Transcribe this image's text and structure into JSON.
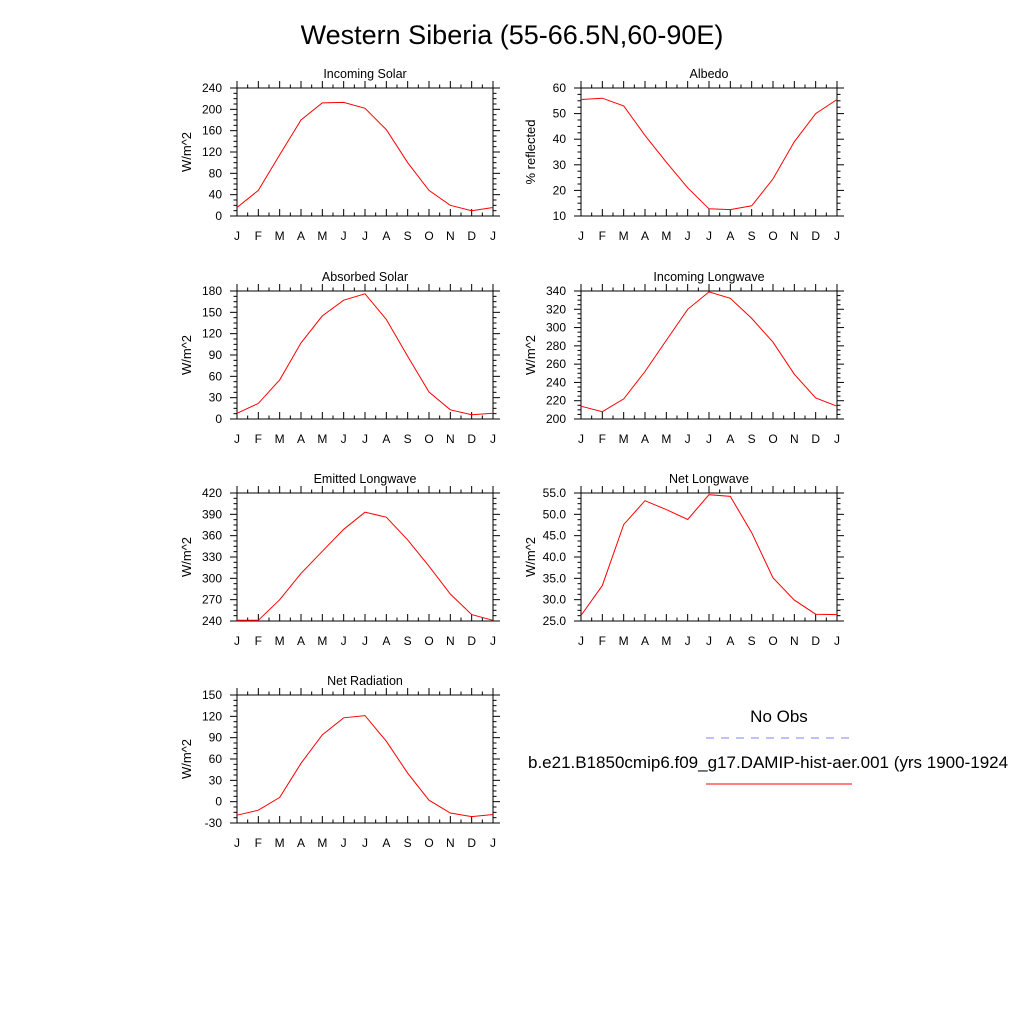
{
  "title": "Western Siberia (55-66.5N,60-90E)",
  "legend": {
    "obs_label": "No Obs",
    "obs_color": "#8080ff",
    "model_label": "b.e21.B1850cmip6.f09_g17.DAMIP-hist-aer.001 (yrs 1900-1924",
    "model_color": "#ff0000"
  },
  "chart_data": [
    {
      "type": "line",
      "title": "Incoming Solar",
      "ylabel": "W/m^2",
      "x": [
        "J",
        "F",
        "M",
        "A",
        "M",
        "J",
        "J",
        "A",
        "S",
        "O",
        "N",
        "D",
        "J"
      ],
      "ylim": [
        0,
        240
      ],
      "yticks": [
        "0",
        "40",
        "80",
        "120",
        "160",
        "200",
        "240"
      ],
      "series": [
        {
          "color": "#ff0000",
          "values": [
            16,
            48,
            115,
            180,
            212,
            213,
            202,
            162,
            100,
            48,
            20,
            10,
            16
          ]
        }
      ]
    },
    {
      "type": "line",
      "title": "Albedo",
      "ylabel": "% reflected",
      "x": [
        "J",
        "F",
        "M",
        "A",
        "M",
        "J",
        "J",
        "A",
        "S",
        "O",
        "N",
        "D",
        "J"
      ],
      "ylim": [
        10,
        60
      ],
      "yticks": [
        "10",
        "20",
        "30",
        "40",
        "50",
        "60"
      ],
      "series": [
        {
          "color": "#ff0000",
          "values": [
            55.5,
            56,
            53,
            41.5,
            31,
            21,
            12.8,
            12.5,
            14,
            24.5,
            39,
            50,
            55.5
          ]
        }
      ]
    },
    {
      "type": "line",
      "title": "Absorbed Solar",
      "ylabel": "W/m^2",
      "x": [
        "J",
        "F",
        "M",
        "A",
        "M",
        "J",
        "J",
        "A",
        "S",
        "O",
        "N",
        "D",
        "J"
      ],
      "ylim": [
        0,
        180
      ],
      "yticks": [
        "0",
        "30",
        "60",
        "90",
        "120",
        "150",
        "180"
      ],
      "series": [
        {
          "color": "#ff0000",
          "values": [
            8,
            22,
            55,
            107,
            145,
            167,
            176,
            140,
            88,
            38,
            13,
            6,
            8
          ]
        }
      ]
    },
    {
      "type": "line",
      "title": "Incoming Longwave",
      "ylabel": "W/m^2",
      "x": [
        "J",
        "F",
        "M",
        "A",
        "M",
        "J",
        "J",
        "A",
        "S",
        "O",
        "N",
        "D",
        "J"
      ],
      "ylim": [
        200,
        340
      ],
      "yticks": [
        "200",
        "220",
        "240",
        "260",
        "280",
        "300",
        "320",
        "340"
      ],
      "series": [
        {
          "color": "#ff0000",
          "values": [
            214,
            208,
            222,
            252,
            286,
            320,
            339,
            332,
            310,
            284,
            249,
            223,
            214
          ]
        }
      ]
    },
    {
      "type": "line",
      "title": "Emitted Longwave",
      "ylabel": "W/m^2",
      "x": [
        "J",
        "F",
        "M",
        "A",
        "M",
        "J",
        "J",
        "A",
        "S",
        "O",
        "N",
        "D",
        "J"
      ],
      "ylim": [
        240,
        420
      ],
      "yticks": [
        "240",
        "270",
        "300",
        "330",
        "360",
        "390",
        "420"
      ],
      "series": [
        {
          "color": "#ff0000",
          "values": [
            241,
            241,
            270,
            307,
            338,
            369,
            393,
            386,
            354,
            317,
            278,
            249,
            241
          ]
        }
      ]
    },
    {
      "type": "line",
      "title": "Net Longwave",
      "ylabel": "W/m^2",
      "x": [
        "J",
        "F",
        "M",
        "A",
        "M",
        "J",
        "J",
        "A",
        "S",
        "O",
        "N",
        "D",
        "J"
      ],
      "ylim": [
        25,
        55
      ],
      "yticks": [
        "25.0",
        "30.0",
        "35.0",
        "40.0",
        "45.0",
        "50.0",
        "55.0"
      ],
      "series": [
        {
          "color": "#ff0000",
          "values": [
            26.3,
            33.3,
            47.6,
            53.2,
            51.1,
            48.8,
            54.6,
            54.2,
            45.7,
            35.1,
            29.9,
            26.6,
            26.5
          ]
        }
      ]
    },
    {
      "type": "line",
      "title": "Net Radiation",
      "ylabel": "W/m^2",
      "x": [
        "J",
        "F",
        "M",
        "A",
        "M",
        "J",
        "J",
        "A",
        "S",
        "O",
        "N",
        "D",
        "J"
      ],
      "ylim": [
        -30,
        150
      ],
      "yticks": [
        "-30",
        "0",
        "30",
        "60",
        "90",
        "120",
        "150"
      ],
      "series": [
        {
          "color": "#ff0000",
          "values": [
            -19,
            -12,
            6,
            54,
            94,
            118,
            121,
            85,
            40,
            2,
            -16,
            -21,
            -18
          ]
        }
      ]
    }
  ]
}
